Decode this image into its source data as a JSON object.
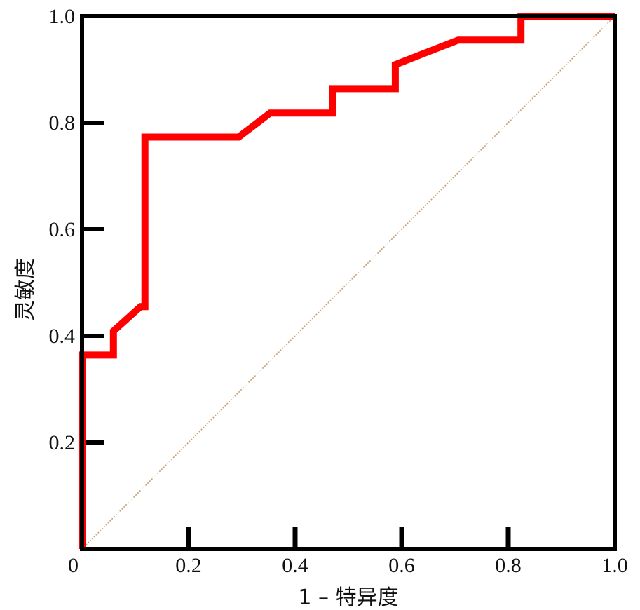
{
  "chart_data": {
    "type": "line",
    "title": "",
    "xlabel": "1 – 特异度",
    "ylabel": "灵敏度",
    "xlim": [
      0,
      1
    ],
    "ylim": [
      0,
      1
    ],
    "grid": false,
    "x_ticks": [
      0,
      0.2,
      0.4,
      0.6,
      0.8,
      1.0
    ],
    "x_tick_labels": [
      "0",
      "0.2",
      "0.4",
      "0.6",
      "0.8",
      "1.0"
    ],
    "y_ticks": [
      0.2,
      0.4,
      0.6,
      0.8,
      1.0
    ],
    "y_tick_labels": [
      "0.2",
      "0.4",
      "0.6",
      "0.8",
      "1.0"
    ],
    "series": [
      {
        "color": "#ff0000",
        "x": [
          0,
          0,
          0.059,
          0.059,
          0.11,
          0.118,
          0.118,
          0.294,
          0.353,
          0.471,
          0.471,
          0.588,
          0.588,
          0.706,
          0.824,
          0.824,
          1.0
        ],
        "y": [
          0,
          0.364,
          0.364,
          0.409,
          0.455,
          0.455,
          0.773,
          0.773,
          0.818,
          0.818,
          0.864,
          0.864,
          0.909,
          0.955,
          0.955,
          1.0,
          1.0
        ]
      },
      {
        "color": "#c8a070",
        "style": "dotted",
        "x": [
          0,
          1
        ],
        "y": [
          0,
          1
        ]
      }
    ]
  }
}
